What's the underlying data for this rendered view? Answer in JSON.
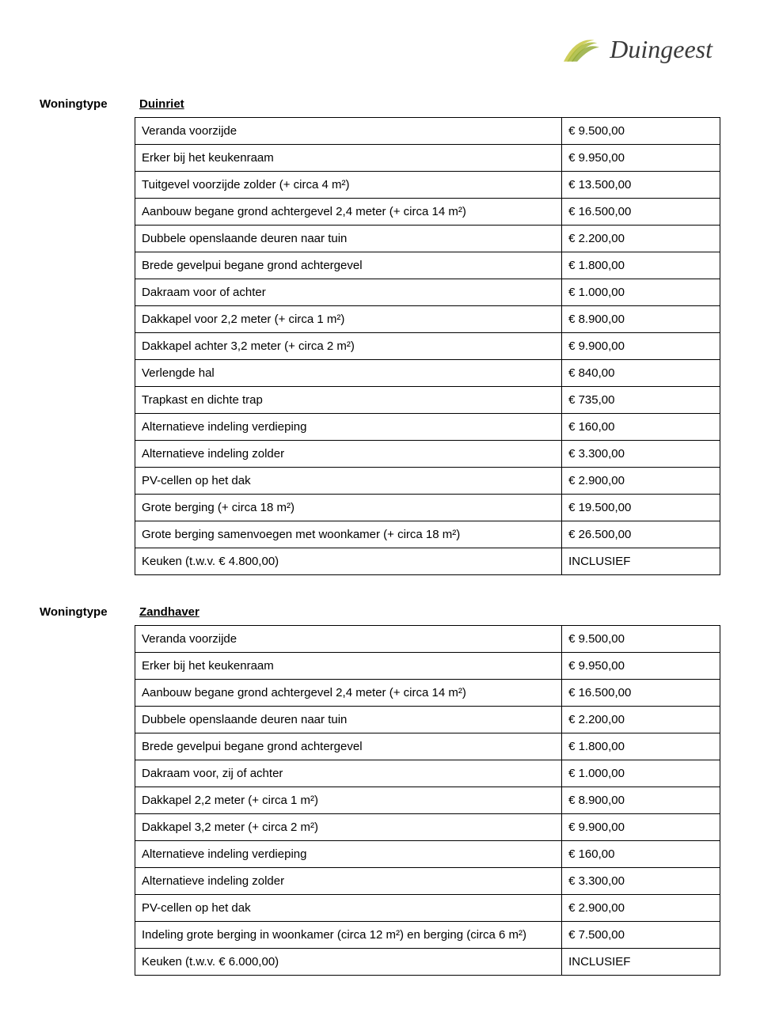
{
  "logo_text": "Duingeest",
  "category_label": "Woningtype",
  "sections": [
    {
      "heading": "Duinriet",
      "rows": [
        {
          "label": "Veranda voorzijde",
          "price": "€ 9.500,00"
        },
        {
          "label": "Erker bij het keukenraam",
          "price": "€ 9.950,00"
        },
        {
          "label": "Tuitgevel voorzijde zolder (+ circa 4 m²)",
          "price": "€ 13.500,00"
        },
        {
          "label": "Aanbouw begane grond achtergevel 2,4 meter (+ circa 14 m²)",
          "price": "€ 16.500,00"
        },
        {
          "label": "Dubbele openslaande deuren naar tuin",
          "price": "€ 2.200,00"
        },
        {
          "label": "Brede gevelpui begane grond achtergevel",
          "price": "€ 1.800,00"
        },
        {
          "label": "Dakraam voor of achter",
          "price": "€ 1.000,00"
        },
        {
          "label": "Dakkapel voor 2,2 meter (+ circa 1 m²)",
          "price": "€ 8.900,00"
        },
        {
          "label": "Dakkapel achter 3,2 meter (+ circa 2 m²)",
          "price": "€ 9.900,00"
        },
        {
          "label": "Verlengde hal",
          "price": "€ 840,00"
        },
        {
          "label": "Trapkast en dichte trap",
          "price": "€ 735,00"
        },
        {
          "label": "Alternatieve indeling verdieping",
          "price": "€ 160,00"
        },
        {
          "label": "Alternatieve indeling zolder",
          "price": "€ 3.300,00"
        },
        {
          "label": "PV-cellen op het dak",
          "price": "€ 2.900,00"
        },
        {
          "label": "Grote berging (+ circa 18 m²)",
          "price": "€ 19.500,00"
        },
        {
          "label": "Grote berging samenvoegen met woonkamer (+ circa 18 m²)",
          "price": "€ 26.500,00"
        },
        {
          "label": "Keuken (t.w.v. € 4.800,00)",
          "price": "INCLUSIEF"
        }
      ]
    },
    {
      "heading": "Zandhaver",
      "rows": [
        {
          "label": "Veranda voorzijde",
          "price": "€ 9.500,00"
        },
        {
          "label": "Erker bij het keukenraam",
          "price": "€ 9.950,00"
        },
        {
          "label": "Aanbouw begane grond achtergevel 2,4 meter (+ circa 14 m²)",
          "price": "€ 16.500,00"
        },
        {
          "label": "Dubbele openslaande deuren naar tuin",
          "price": "€ 2.200,00"
        },
        {
          "label": "Brede gevelpui begane grond achtergevel",
          "price": "€ 1.800,00"
        },
        {
          "label": "Dakraam voor, zij of achter",
          "price": "€ 1.000,00"
        },
        {
          "label": "Dakkapel 2,2 meter (+ circa 1 m²)",
          "price": "€ 8.900,00"
        },
        {
          "label": "Dakkapel 3,2 meter (+ circa 2 m²)",
          "price": "€ 9.900,00"
        },
        {
          "label": "Alternatieve indeling verdieping",
          "price": "€ 160,00"
        },
        {
          "label": "Alternatieve indeling zolder",
          "price": "€ 3.300,00"
        },
        {
          "label": "PV-cellen op het dak",
          "price": "€ 2.900,00"
        },
        {
          "label": "Indeling grote berging in woonkamer (circa 12 m²) en berging (circa 6 m²)",
          "price": "€ 7.500,00"
        },
        {
          "label": "Keuken (t.w.v. € 6.000,00)",
          "price": "INCLUSIEF"
        }
      ]
    }
  ]
}
